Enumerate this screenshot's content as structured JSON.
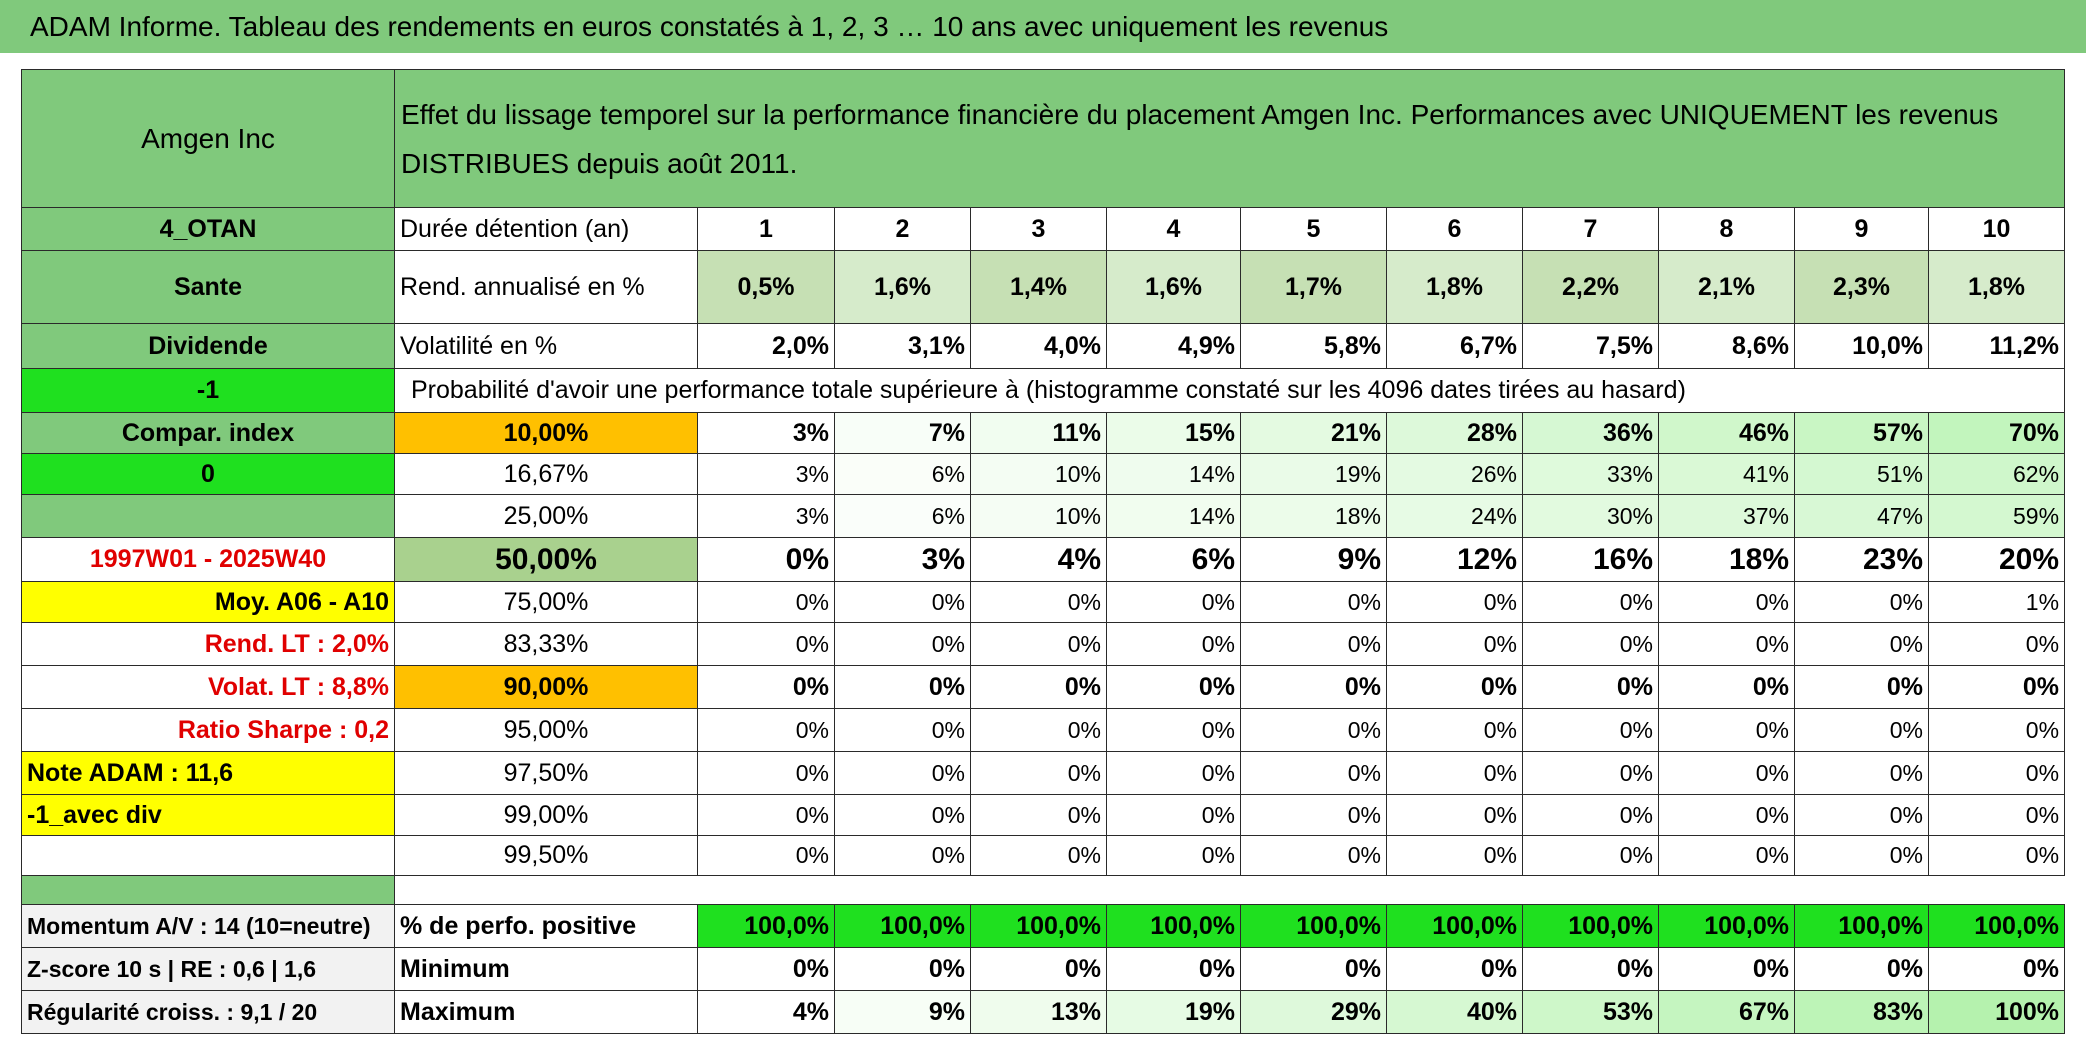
{
  "title": "ADAM Informe. Tableau des rendements en euros constatés à 1, 2, 3 … 10 ans avec uniquement les revenus",
  "header": {
    "name": "Amgen Inc",
    "description": "Effet du lissage temporel sur la performance financière du placement Amgen Inc. Performances avec UNIQUEMENT les revenus DISTRIBUES depuis août 2011."
  },
  "table": {
    "rows": [
      [
        "4_OTAN",
        "Durée détention (an)",
        1,
        2,
        3,
        4,
        5,
        6,
        7,
        8,
        9,
        10
      ],
      [
        "Sante",
        "Rend. annualisé en %",
        "0,5%",
        "1,6%",
        "1,4%",
        "1,6%",
        "1,7%",
        "1,8%",
        "2,2%",
        "2,1%",
        "2,3%",
        "1,8%"
      ],
      [
        "Dividende",
        "Volatilité en %",
        "2,0%",
        "3,1%",
        "4,0%",
        "4,9%",
        "5,8%",
        "6,7%",
        "7,5%",
        "8,6%",
        "10,0%",
        "11,2%"
      ],
      [
        "-1",
        "Probabilité d'avoir une performance totale supérieure à (histogramme constaté sur les 4096 dates tirées au hasard)"
      ],
      [
        "Compar. index",
        "10,00%",
        "3%",
        "7%",
        "11%",
        "15%",
        "21%",
        "28%",
        "36%",
        "46%",
        "57%",
        "70%"
      ],
      [
        "0",
        "16,67%",
        "3%",
        "6%",
        "10%",
        "14%",
        "19%",
        "26%",
        "33%",
        "41%",
        "51%",
        "62%"
      ],
      [
        null,
        "25,00%",
        "3%",
        "6%",
        "10%",
        "14%",
        "18%",
        "24%",
        "30%",
        "37%",
        "47%",
        "59%"
      ],
      [
        "1997W01 - 2025W40",
        "50,00%",
        "0%",
        "3%",
        "4%",
        "6%",
        "9%",
        "12%",
        "16%",
        "18%",
        "23%",
        "20%"
      ],
      [
        "Moy. A06 - A10",
        "75,00%",
        "0%",
        "0%",
        "0%",
        "0%",
        "0%",
        "0%",
        "0%",
        "0%",
        "0%",
        "1%"
      ],
      [
        "Rend. LT :   2,0%",
        "83,33%",
        "0%",
        "0%",
        "0%",
        "0%",
        "0%",
        "0%",
        "0%",
        "0%",
        "0%",
        "0%"
      ],
      [
        "Volat. LT :   8,8%",
        "90,00%",
        "0%",
        "0%",
        "0%",
        "0%",
        "0%",
        "0%",
        "0%",
        "0%",
        "0%",
        "0%"
      ],
      [
        "Ratio Sharpe :    0,2",
        "95,00%",
        "0%",
        "0%",
        "0%",
        "0%",
        "0%",
        "0%",
        "0%",
        "0%",
        "0%",
        "0%"
      ],
      [
        "Note ADAM : 11,6",
        "97,50%",
        "0%",
        "0%",
        "0%",
        "0%",
        "0%",
        "0%",
        "0%",
        "0%",
        "0%",
        "0%"
      ],
      [
        "-1_avec div",
        "99,00%",
        "0%",
        "0%",
        "0%",
        "0%",
        "0%",
        "0%",
        "0%",
        "0%",
        "0%",
        "0%"
      ],
      [
        null,
        "99,50%",
        "0%",
        "0%",
        "0%",
        "0%",
        "0%",
        "0%",
        "0%",
        "0%",
        "0%",
        "0%"
      ]
    ]
  },
  "summary": {
    "rows": [
      [
        "Momentum A/V : 14 (10=neutre)",
        "% de perfo. positive",
        "100,0%",
        "100,0%",
        "100,0%",
        "100,0%",
        "100,0%",
        "100,0%",
        "100,0%",
        "100,0%",
        "100,0%",
        "100,0%"
      ],
      [
        "Z-score 10 s | RE : 0,6 | 1,6",
        "Minimum",
        "0%",
        "0%",
        "0%",
        "0%",
        "0%",
        "0%",
        "0%",
        "0%",
        "0%",
        "0%"
      ],
      [
        "Régularité croiss. : 9,1 / 20",
        "Maximum",
        "4%",
        "9%",
        "13%",
        "19%",
        "29%",
        "40%",
        "53%",
        "67%",
        "83%",
        "100%"
      ]
    ]
  }
}
